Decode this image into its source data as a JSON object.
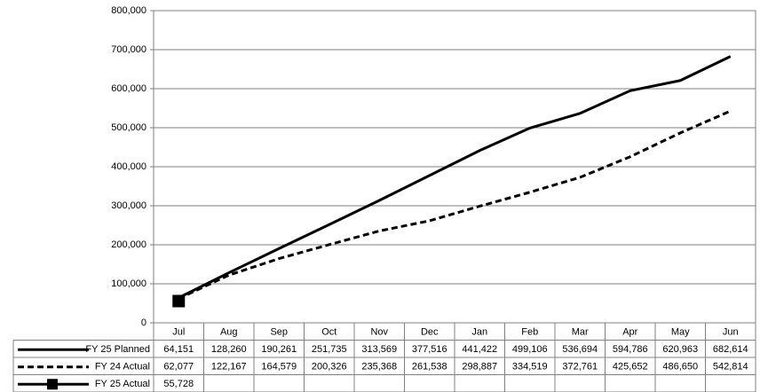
{
  "chart_data": {
    "type": "line",
    "categories": [
      "Jul",
      "Aug",
      "Sep",
      "Oct",
      "Nov",
      "Dec",
      "Jan",
      "Feb",
      "Mar",
      "Apr",
      "May",
      "Jun"
    ],
    "series": [
      {
        "name": "FY 25 Planned",
        "color": "#000000",
        "line_style": "solid",
        "values": [
          64151,
          128260,
          190261,
          251735,
          313569,
          377516,
          441422,
          499106,
          536694,
          594786,
          620963,
          682614
        ],
        "value_labels": [
          "64,151",
          "128,260",
          "190,261",
          "251,735",
          "313,569",
          "377,516",
          "441,422",
          "499,106",
          "536,694",
          "594,786",
          "620,963",
          "682,614"
        ]
      },
      {
        "name": "FY 24 Actual",
        "color": "#000000",
        "line_style": "dashed",
        "values": [
          62077,
          122167,
          164579,
          200326,
          235368,
          261538,
          298887,
          334519,
          372761,
          425652,
          486650,
          542814
        ],
        "value_labels": [
          "62,077",
          "122,167",
          "164,579",
          "200,326",
          "235,368",
          "261,538",
          "298,887",
          "334,519",
          "372,761",
          "425,652",
          "486,650",
          "542,814"
        ]
      },
      {
        "name": "FY 25 Actual",
        "color": "#000000",
        "line_style": "solid",
        "marker": "square",
        "values": [
          55728,
          null,
          null,
          null,
          null,
          null,
          null,
          null,
          null,
          null,
          null,
          null
        ],
        "value_labels": [
          "55,728",
          null,
          null,
          null,
          null,
          null,
          null,
          null,
          null,
          null,
          null,
          null
        ]
      }
    ],
    "ylim": [
      0,
      800000
    ],
    "yticks": [
      0,
      {
        "value": 100000,
        "label": "100,000"
      },
      {
        "value": 200000,
        "label": "200,000"
      },
      {
        "value": 300000,
        "label": "300,000"
      },
      {
        "value": 400000,
        "label": "400,000"
      },
      {
        "value": 500000,
        "label": "500,000"
      },
      {
        "value": 600000,
        "label": "600,000"
      },
      {
        "value": 700000,
        "label": "700,000"
      },
      {
        "value": 800000,
        "label": "800,000"
      }
    ],
    "grid": true
  }
}
